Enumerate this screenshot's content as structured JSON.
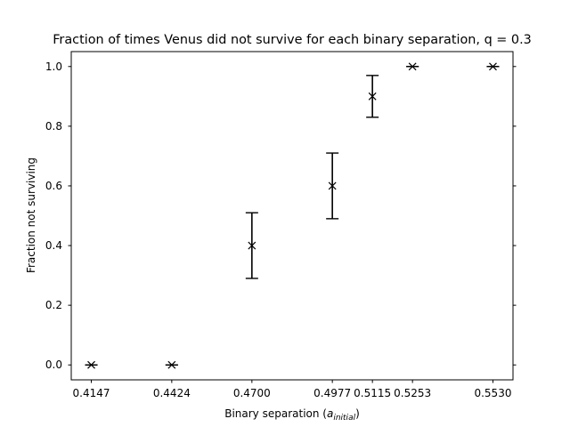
{
  "chart_data": {
    "type": "scatter",
    "title": "Fraction of times Venus did not survive for each binary separation, q = 0.3",
    "xlabel_main": "Binary separation (",
    "xlabel_symbol": "a",
    "xlabel_subscript": "initial",
    "xlabel_close": ")",
    "ylabel": "Fraction not surviving",
    "x_tick_labels": [
      "0.4147",
      "0.4424",
      "0.4700",
      "0.4977",
      "0.5115",
      "0.5253",
      "0.5530"
    ],
    "y_tick_labels": [
      "0.0",
      "0.2",
      "0.4",
      "0.6",
      "0.8",
      "1.0"
    ],
    "y_ticks": [
      0.0,
      0.2,
      0.4,
      0.6,
      0.8,
      1.0
    ],
    "xlim": [
      0.40779,
      0.55991
    ],
    "ylim": [
      -0.05,
      1.05
    ],
    "grid": false,
    "marker": "x",
    "color": "#000000",
    "x": [
      0.4147,
      0.4424,
      0.47,
      0.4977,
      0.5115,
      0.5253,
      0.553
    ],
    "y": [
      0.0,
      0.0,
      0.4,
      0.6,
      0.9,
      1.0,
      1.0
    ],
    "yerr": [
      0.0,
      0.0,
      0.11,
      0.11,
      0.07,
      0.0,
      0.0
    ]
  }
}
